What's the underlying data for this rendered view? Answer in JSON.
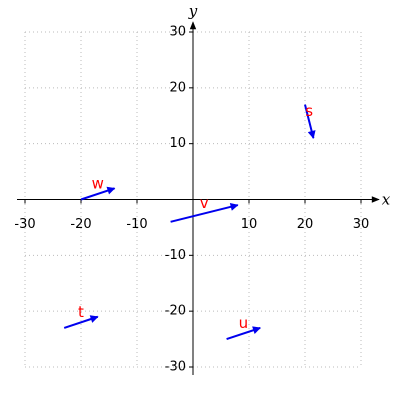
{
  "chart_data": {
    "type": "vector",
    "x_label": "x",
    "y_label": "y",
    "xlim": [
      -30,
      30
    ],
    "ylim": [
      -30,
      30
    ],
    "xticks": [
      -30,
      -20,
      -10,
      10,
      20,
      30
    ],
    "yticks": [
      -30,
      -20,
      -10,
      10,
      20,
      30
    ],
    "grid": true,
    "color": "#0000ee",
    "label_color": "#ff0000",
    "vectors": [
      {
        "label": "s",
        "x": 20,
        "y": 17,
        "x_end": 21.5,
        "y_end": 11
      },
      {
        "label": "w",
        "x": -20,
        "y": 0,
        "x_end": -14,
        "y_end": 2
      },
      {
        "label": "v",
        "x": -4,
        "y": -4,
        "x_end": 8,
        "y_end": -1
      },
      {
        "label": "t",
        "x": -23,
        "y": -23,
        "x_end": -17,
        "y_end": -21
      },
      {
        "label": "u",
        "x": 6,
        "y": -25,
        "x_end": 12,
        "y_end": -23
      }
    ]
  }
}
